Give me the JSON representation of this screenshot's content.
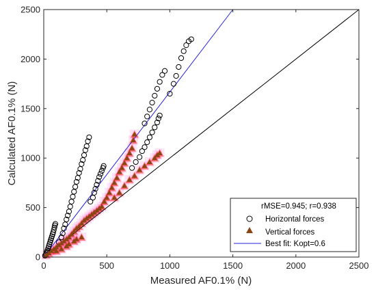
{
  "chart_data": {
    "type": "scatter",
    "title": "",
    "xlabel": "Measured AF0.1% (N)",
    "ylabel": "Calculated AF0.1% (N)",
    "xlim": [
      0,
      2500
    ],
    "ylim": [
      0,
      2500
    ],
    "xticks": [
      "0",
      "500",
      "1000",
      "1500",
      "2000",
      "2500"
    ],
    "yticks": [
      "0",
      "500",
      "1000",
      "1500",
      "2000",
      "2500"
    ],
    "grid": false,
    "legend_position": "bottom-right",
    "legend_header": "rMSE=0.945; r=0.938",
    "series": [
      {
        "name": "Horizontal forces",
        "marker": "open-circle",
        "color": "#000000",
        "points": [
          [
            10,
            15
          ],
          [
            15,
            25
          ],
          [
            20,
            40
          ],
          [
            25,
            55
          ],
          [
            30,
            70
          ],
          [
            35,
            90
          ],
          [
            40,
            110
          ],
          [
            45,
            130
          ],
          [
            50,
            150
          ],
          [
            55,
            170
          ],
          [
            60,
            190
          ],
          [
            65,
            210
          ],
          [
            70,
            230
          ],
          [
            75,
            250
          ],
          [
            80,
            275
          ],
          [
            85,
            300
          ],
          [
            88,
            320
          ],
          [
            92,
            335
          ],
          [
            120,
            150
          ],
          [
            140,
            200
          ],
          [
            150,
            240
          ],
          [
            160,
            290
          ],
          [
            170,
            330
          ],
          [
            180,
            380
          ],
          [
            190,
            420
          ],
          [
            200,
            460
          ],
          [
            210,
            510
          ],
          [
            220,
            560
          ],
          [
            230,
            610
          ],
          [
            240,
            660
          ],
          [
            250,
            710
          ],
          [
            260,
            760
          ],
          [
            270,
            800
          ],
          [
            280,
            850
          ],
          [
            290,
            890
          ],
          [
            300,
            940
          ],
          [
            310,
            980
          ],
          [
            320,
            1030
          ],
          [
            330,
            1080
          ],
          [
            340,
            1120
          ],
          [
            350,
            1170
          ],
          [
            360,
            1210
          ],
          [
            370,
            560
          ],
          [
            390,
            600
          ],
          [
            400,
            650
          ],
          [
            410,
            690
          ],
          [
            420,
            730
          ],
          [
            430,
            770
          ],
          [
            440,
            810
          ],
          [
            450,
            840
          ],
          [
            460,
            870
          ],
          [
            470,
            900
          ],
          [
            475,
            920
          ],
          [
            700,
            900
          ],
          [
            730,
            960
          ],
          [
            760,
            1010
          ],
          [
            780,
            1070
          ],
          [
            800,
            1110
          ],
          [
            820,
            1160
          ],
          [
            840,
            1210
          ],
          [
            860,
            1260
          ],
          [
            880,
            1310
          ],
          [
            900,
            1360
          ],
          [
            910,
            1400
          ],
          [
            920,
            1430
          ],
          [
            800,
            1350
          ],
          [
            820,
            1420
          ],
          [
            840,
            1490
          ],
          [
            860,
            1560
          ],
          [
            880,
            1630
          ],
          [
            900,
            1700
          ],
          [
            920,
            1770
          ],
          [
            940,
            1840
          ],
          [
            960,
            1880
          ],
          [
            1000,
            1650
          ],
          [
            1030,
            1750
          ],
          [
            1050,
            1830
          ],
          [
            1070,
            1920
          ],
          [
            1090,
            2010
          ],
          [
            1110,
            2080
          ],
          [
            1130,
            2140
          ],
          [
            1150,
            2180
          ],
          [
            1170,
            2200
          ]
        ]
      },
      {
        "name": "Vertical forces",
        "marker": "filled-triangle",
        "color": "#8b4513",
        "points": [
          [
            20,
            20
          ],
          [
            40,
            40
          ],
          [
            60,
            60
          ],
          [
            80,
            80
          ],
          [
            100,
            100
          ],
          [
            120,
            120
          ],
          [
            140,
            140
          ],
          [
            160,
            160
          ],
          [
            180,
            180
          ],
          [
            200,
            200
          ],
          [
            220,
            230
          ],
          [
            240,
            260
          ],
          [
            260,
            290
          ],
          [
            280,
            310
          ],
          [
            300,
            340
          ],
          [
            320,
            370
          ],
          [
            340,
            390
          ],
          [
            360,
            410
          ],
          [
            380,
            430
          ],
          [
            400,
            450
          ],
          [
            420,
            470
          ],
          [
            440,
            490
          ],
          [
            460,
            510
          ],
          [
            100,
            60
          ],
          [
            140,
            80
          ],
          [
            180,
            110
          ],
          [
            200,
            130
          ],
          [
            240,
            160
          ],
          [
            260,
            180
          ],
          [
            300,
            200
          ],
          [
            480,
            560
          ],
          [
            500,
            600
          ],
          [
            520,
            650
          ],
          [
            540,
            700
          ],
          [
            560,
            750
          ],
          [
            580,
            800
          ],
          [
            600,
            860
          ],
          [
            620,
            900
          ],
          [
            640,
            950
          ],
          [
            660,
            1000
          ],
          [
            680,
            1050
          ],
          [
            700,
            1100
          ],
          [
            710,
            1180
          ],
          [
            720,
            1240
          ],
          [
            560,
            600
          ],
          [
            600,
            650
          ],
          [
            640,
            720
          ],
          [
            680,
            780
          ],
          [
            720,
            820
          ],
          [
            760,
            880
          ],
          [
            800,
            920
          ],
          [
            840,
            960
          ],
          [
            880,
            1000
          ],
          [
            900,
            1030
          ],
          [
            920,
            1050
          ]
        ]
      },
      {
        "name": "Best fit: Kopt=0.6",
        "type": "line",
        "color": "#2222dd",
        "x": [
          0,
          1500
        ],
        "y": [
          0,
          2500
        ]
      },
      {
        "name": "",
        "type": "line",
        "color": "#000000",
        "x": [
          0,
          2500
        ],
        "y": [
          0,
          2500
        ]
      }
    ]
  }
}
